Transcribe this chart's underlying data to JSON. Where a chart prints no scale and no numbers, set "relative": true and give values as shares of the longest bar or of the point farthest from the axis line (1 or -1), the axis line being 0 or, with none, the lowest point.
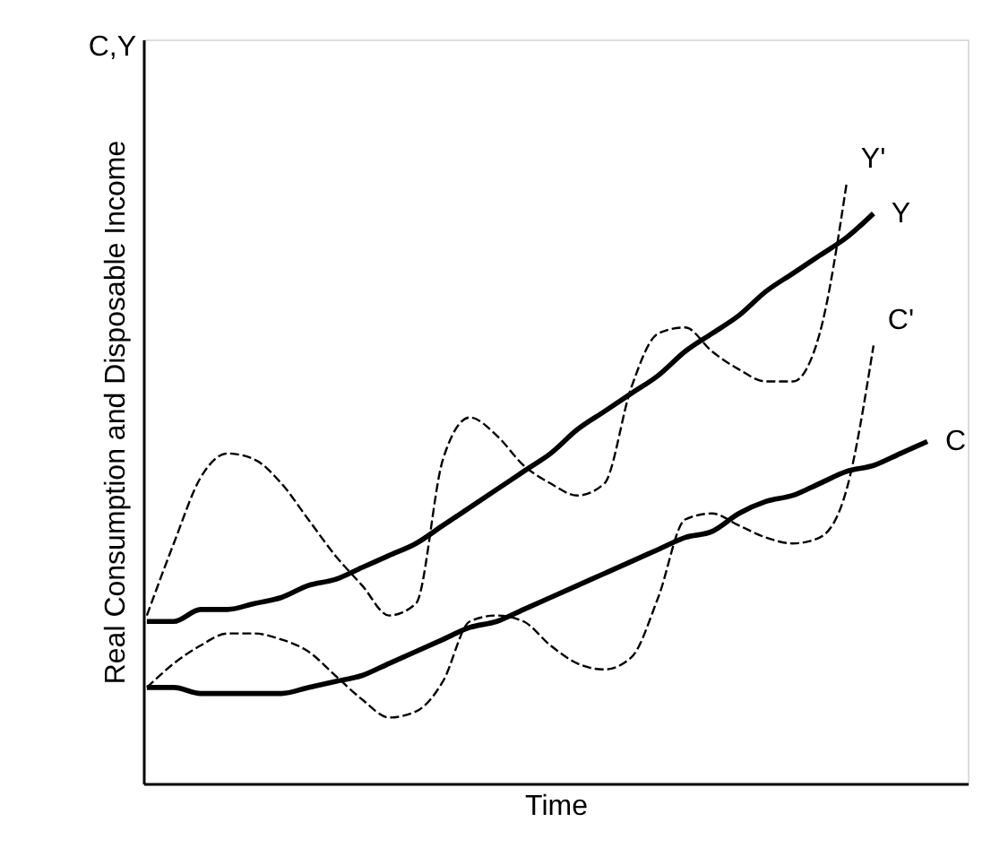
{
  "chart_data": {
    "type": "line",
    "relative": true,
    "xlabel": "Time",
    "ylabel": "Real Consumption and Disposable Income",
    "annotations": [
      "C,Y"
    ],
    "grid": false,
    "marker": "none",
    "categories": [
      null,
      null,
      null,
      null,
      null,
      null,
      null,
      null,
      null,
      null,
      null,
      null,
      null,
      null,
      null,
      null,
      null,
      null,
      null,
      null,
      null,
      null,
      null,
      null,
      null,
      null,
      null,
      null,
      null,
      null,
      null
    ],
    "series": [
      {
        "name": "Y'",
        "color": "#000000",
        "line_style": "dashed",
        "values": [
          0.28,
          0.4,
          0.51,
          0.55,
          0.54,
          0.5,
          0.44,
          0.38,
          0.33,
          0.28,
          0.3,
          0.54,
          0.61,
          0.58,
          0.53,
          0.5,
          0.48,
          0.5,
          0.66,
          0.75,
          0.76,
          0.72,
          0.69,
          0.67,
          0.67,
          0.75,
          1.0,
          null,
          null,
          null,
          null
        ]
      },
      {
        "name": "Y",
        "color": "#000000",
        "line_style": "solid",
        "values": [
          0.27,
          0.27,
          0.29,
          0.29,
          0.3,
          0.31,
          0.33,
          0.34,
          0.36,
          0.38,
          0.4,
          0.43,
          0.46,
          0.49,
          0.52,
          0.55,
          0.59,
          0.62,
          0.65,
          0.68,
          0.72,
          0.75,
          0.78,
          0.82,
          0.85,
          0.88,
          0.91,
          0.95,
          null,
          null,
          null
        ]
      },
      {
        "name": "C'",
        "color": "#000000",
        "line_style": "dashed",
        "values": [
          0.16,
          0.2,
          0.23,
          0.25,
          0.25,
          0.24,
          0.22,
          0.18,
          0.14,
          0.11,
          0.12,
          0.17,
          0.27,
          0.28,
          0.27,
          0.23,
          0.2,
          0.19,
          0.21,
          0.31,
          0.44,
          0.45,
          0.43,
          0.41,
          0.4,
          0.41,
          0.49,
          0.73,
          null,
          null,
          null
        ]
      },
      {
        "name": "C",
        "color": "#000000",
        "line_style": "solid",
        "values": [
          0.16,
          0.16,
          0.15,
          0.15,
          0.15,
          0.15,
          0.16,
          0.17,
          0.18,
          0.2,
          0.22,
          0.24,
          0.26,
          0.27,
          0.29,
          0.31,
          0.33,
          0.35,
          0.37,
          0.39,
          0.41,
          0.42,
          0.45,
          0.47,
          0.48,
          0.5,
          0.52,
          0.53,
          0.55,
          0.57,
          null
        ]
      }
    ]
  }
}
